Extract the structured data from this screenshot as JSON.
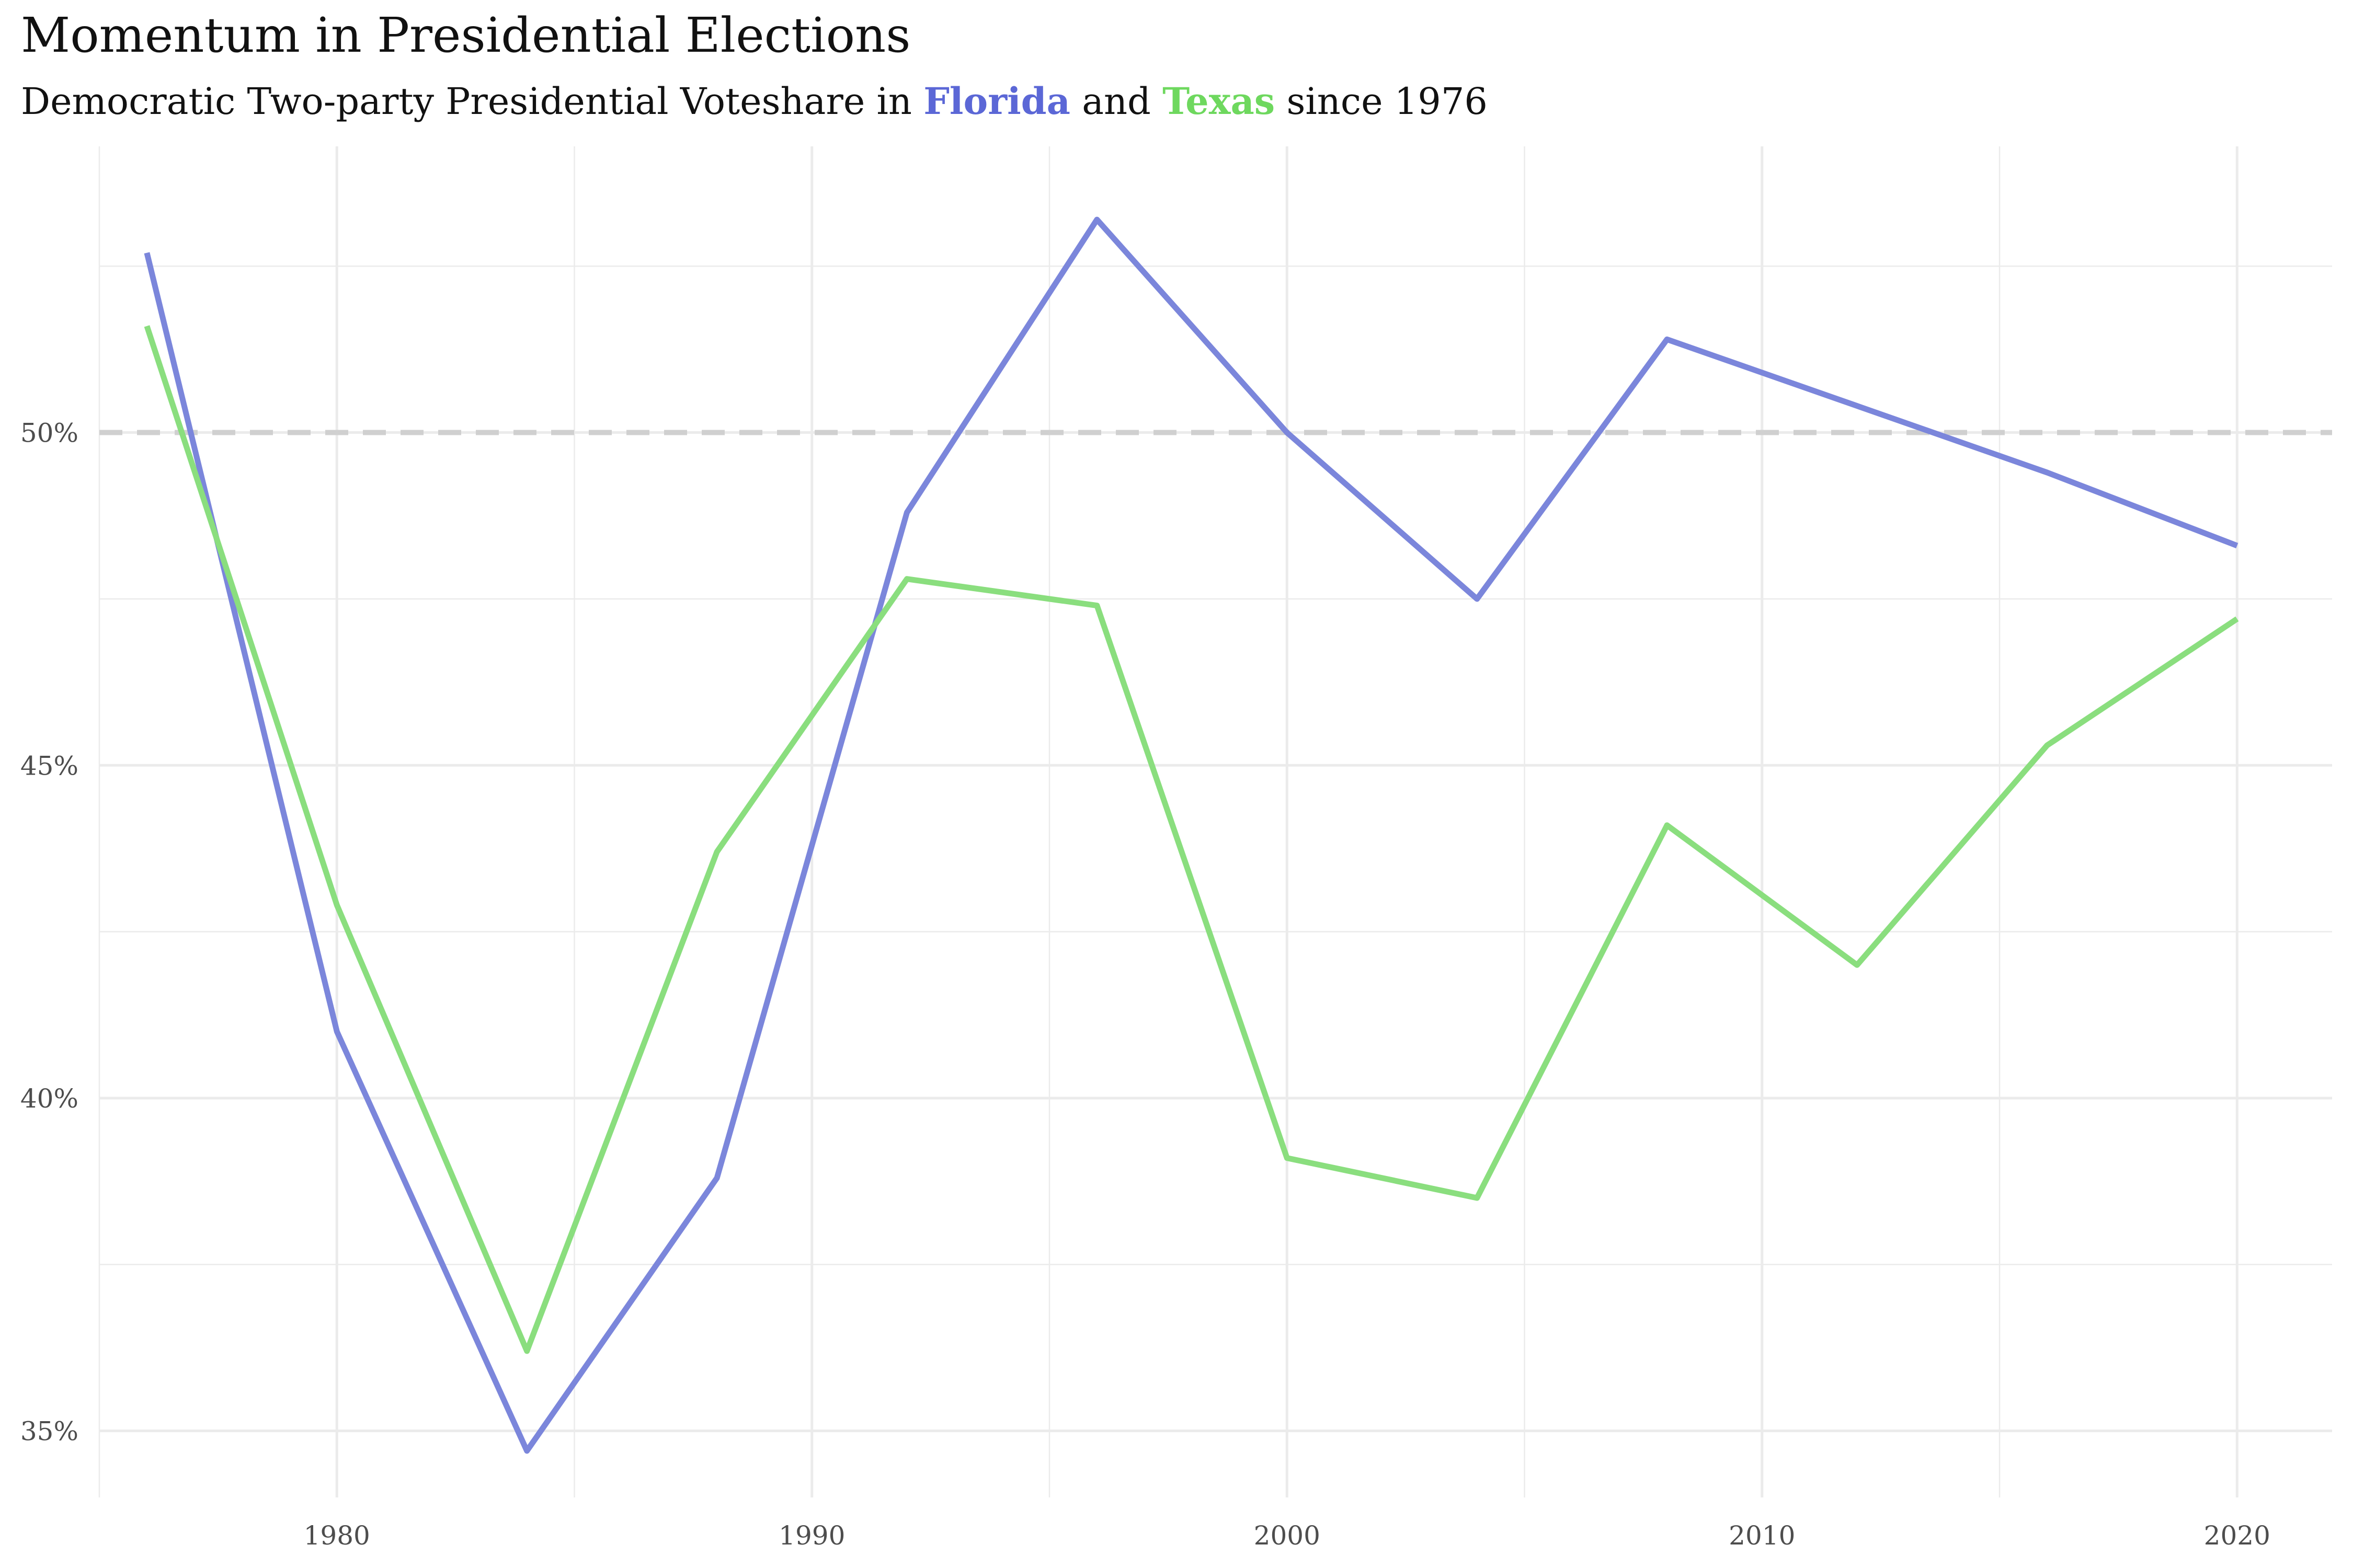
{
  "chart_data": {
    "type": "line",
    "title": "Momentum in Presidential Elections",
    "subtitle": {
      "prefix": "Democratic Two-party Presidential  Voteshare in ",
      "florida": "Florida",
      "and": " and ",
      "texas": "Texas",
      "suffix": " since 1976"
    },
    "xlabel": "",
    "ylabel": "",
    "x": [
      1976,
      1980,
      1984,
      1988,
      1992,
      1996,
      2000,
      2004,
      2008,
      2012,
      2016,
      2020
    ],
    "series": [
      {
        "name": "Florida",
        "color": "#7b86db",
        "values": [
          52.7,
          41.0,
          34.7,
          38.8,
          48.8,
          53.2,
          50.0,
          47.5,
          51.4,
          50.4,
          49.4,
          48.3
        ]
      },
      {
        "name": "Texas",
        "color": "#8ade7e",
        "values": [
          51.6,
          42.9,
          36.2,
          43.7,
          47.8,
          47.4,
          39.1,
          38.5,
          44.1,
          42.0,
          45.3,
          47.2
        ]
      }
    ],
    "xlim": [
      1975,
      2022
    ],
    "ylim": [
      34,
      54.3
    ],
    "x_ticks": [
      1980,
      1990,
      2000,
      2010,
      2020
    ],
    "y_ticks": [
      35,
      40,
      45,
      50
    ],
    "y_tick_labels": [
      "35%",
      "40%",
      "45%",
      "50%"
    ],
    "reference_line": {
      "y": 50,
      "style": "dashed"
    },
    "grid": true,
    "legend": "none",
    "colors": {
      "florida": "#5b67d6",
      "texas": "#6ed85e",
      "grid": "#ebebeb",
      "reference": "#d0d0d0"
    }
  }
}
